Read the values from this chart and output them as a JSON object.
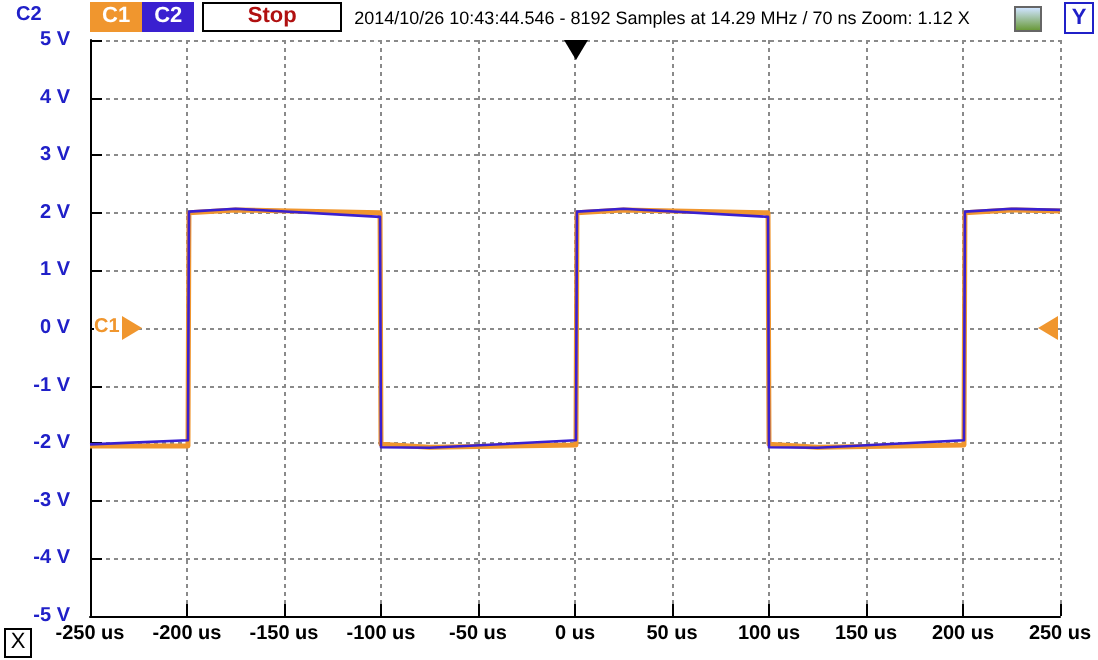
{
  "chart_data": {
    "type": "line",
    "title": "2014/10/26 10:43:44.546 - 8192 Samples at 14.29 MHz / 70 ns Zoom: 1.12 X",
    "ylabel": "C2",
    "annotations": [
      "Stop",
      "Y",
      "X",
      "C1"
    ],
    "series": [
      {
        "name": "C1",
        "color": "#f0962e",
        "x": [
          -250,
          -199.5,
          -199,
          -175,
          -100.5,
          -100,
          -75,
          0.5,
          1,
          25,
          99.5,
          100,
          125,
          200.5,
          201,
          225,
          250
        ],
        "values": [
          -2.05,
          -2.05,
          2.0,
          2.05,
          2.0,
          -2.02,
          -2.07,
          -2.03,
          2.0,
          2.05,
          2.0,
          -2.02,
          -2.07,
          -2.03,
          2.0,
          2.05,
          2.03
        ]
      },
      {
        "name": "C2",
        "color": "#3a20d0",
        "x": [
          -250,
          -199.5,
          -199,
          -175,
          -100.5,
          -100,
          -75,
          0.5,
          1,
          25,
          99.5,
          100,
          125,
          200.5,
          201,
          225,
          250
        ],
        "values": [
          -2.02,
          -1.95,
          2.02,
          2.07,
          1.93,
          -2.07,
          -2.08,
          -1.95,
          2.02,
          2.07,
          1.93,
          -2.07,
          -2.08,
          -1.95,
          2.02,
          2.07,
          2.05
        ]
      }
    ],
    "xlim": [
      -250,
      250
    ],
    "xticks": [
      {
        "value": -250,
        "label": "-250 us"
      },
      {
        "value": -200,
        "label": "-200 us"
      },
      {
        "value": -150,
        "label": "-150 us"
      },
      {
        "value": -100,
        "label": "-100 us"
      },
      {
        "value": -50,
        "label": "-50 us"
      },
      {
        "value": 0,
        "label": "0 us"
      },
      {
        "value": 50,
        "label": "50 us"
      },
      {
        "value": 100,
        "label": "100 us"
      },
      {
        "value": 150,
        "label": "150 us"
      },
      {
        "value": 200,
        "label": "200 us"
      },
      {
        "value": 250,
        "label": "250 us"
      }
    ],
    "ylim": [
      -5,
      5
    ],
    "yticks": [
      {
        "value": -5,
        "label": "-5 V"
      },
      {
        "value": -4,
        "label": "-4 V"
      },
      {
        "value": -3,
        "label": "-3 V"
      },
      {
        "value": -2,
        "label": "-2 V"
      },
      {
        "value": -1,
        "label": "-1 V"
      },
      {
        "value": 0,
        "label": "0 V"
      },
      {
        "value": 1,
        "label": "1 V"
      },
      {
        "value": 2,
        "label": "2 V"
      },
      {
        "value": 3,
        "label": "3 V"
      },
      {
        "value": 4,
        "label": "4 V"
      },
      {
        "value": 5,
        "label": "5 V"
      }
    ],
    "grid": true,
    "legend": "top left",
    "line_style": "solid"
  }
}
